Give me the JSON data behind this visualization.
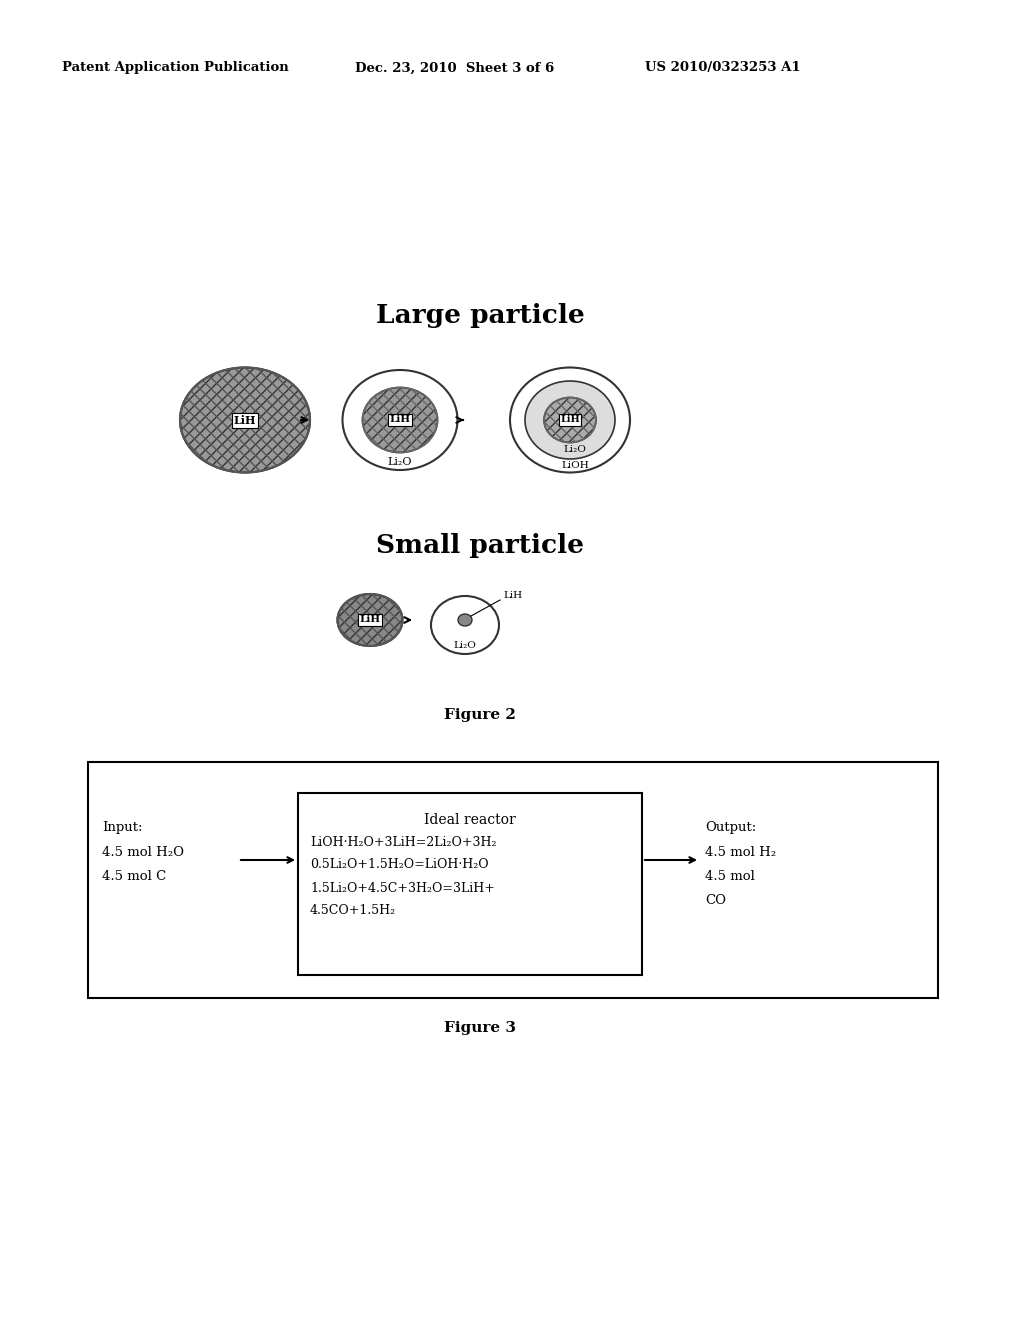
{
  "bg_color": "#ffffff",
  "header_text1": "Patent Application Publication",
  "header_text2": "Dec. 23, 2010  Sheet 3 of 6",
  "header_text3": "US 2010/0323253 A1",
  "large_particle_title": "Large particle",
  "small_particle_title": "Small particle",
  "figure2_caption": "Figure 2",
  "figure3_caption": "Figure 3",
  "reactor_title": "Ideal reactor",
  "reactor_line1": "LiOH·H₂O+3LiH=2Li₂O+3H₂",
  "reactor_line2": "0.5Li₂O+1.5H₂O=LiOH·H₂O",
  "reactor_line3": "1.5Li₂O+4.5C+3H₂O=3LiH+",
  "reactor_line4": "4.5CO+1.5H₂"
}
